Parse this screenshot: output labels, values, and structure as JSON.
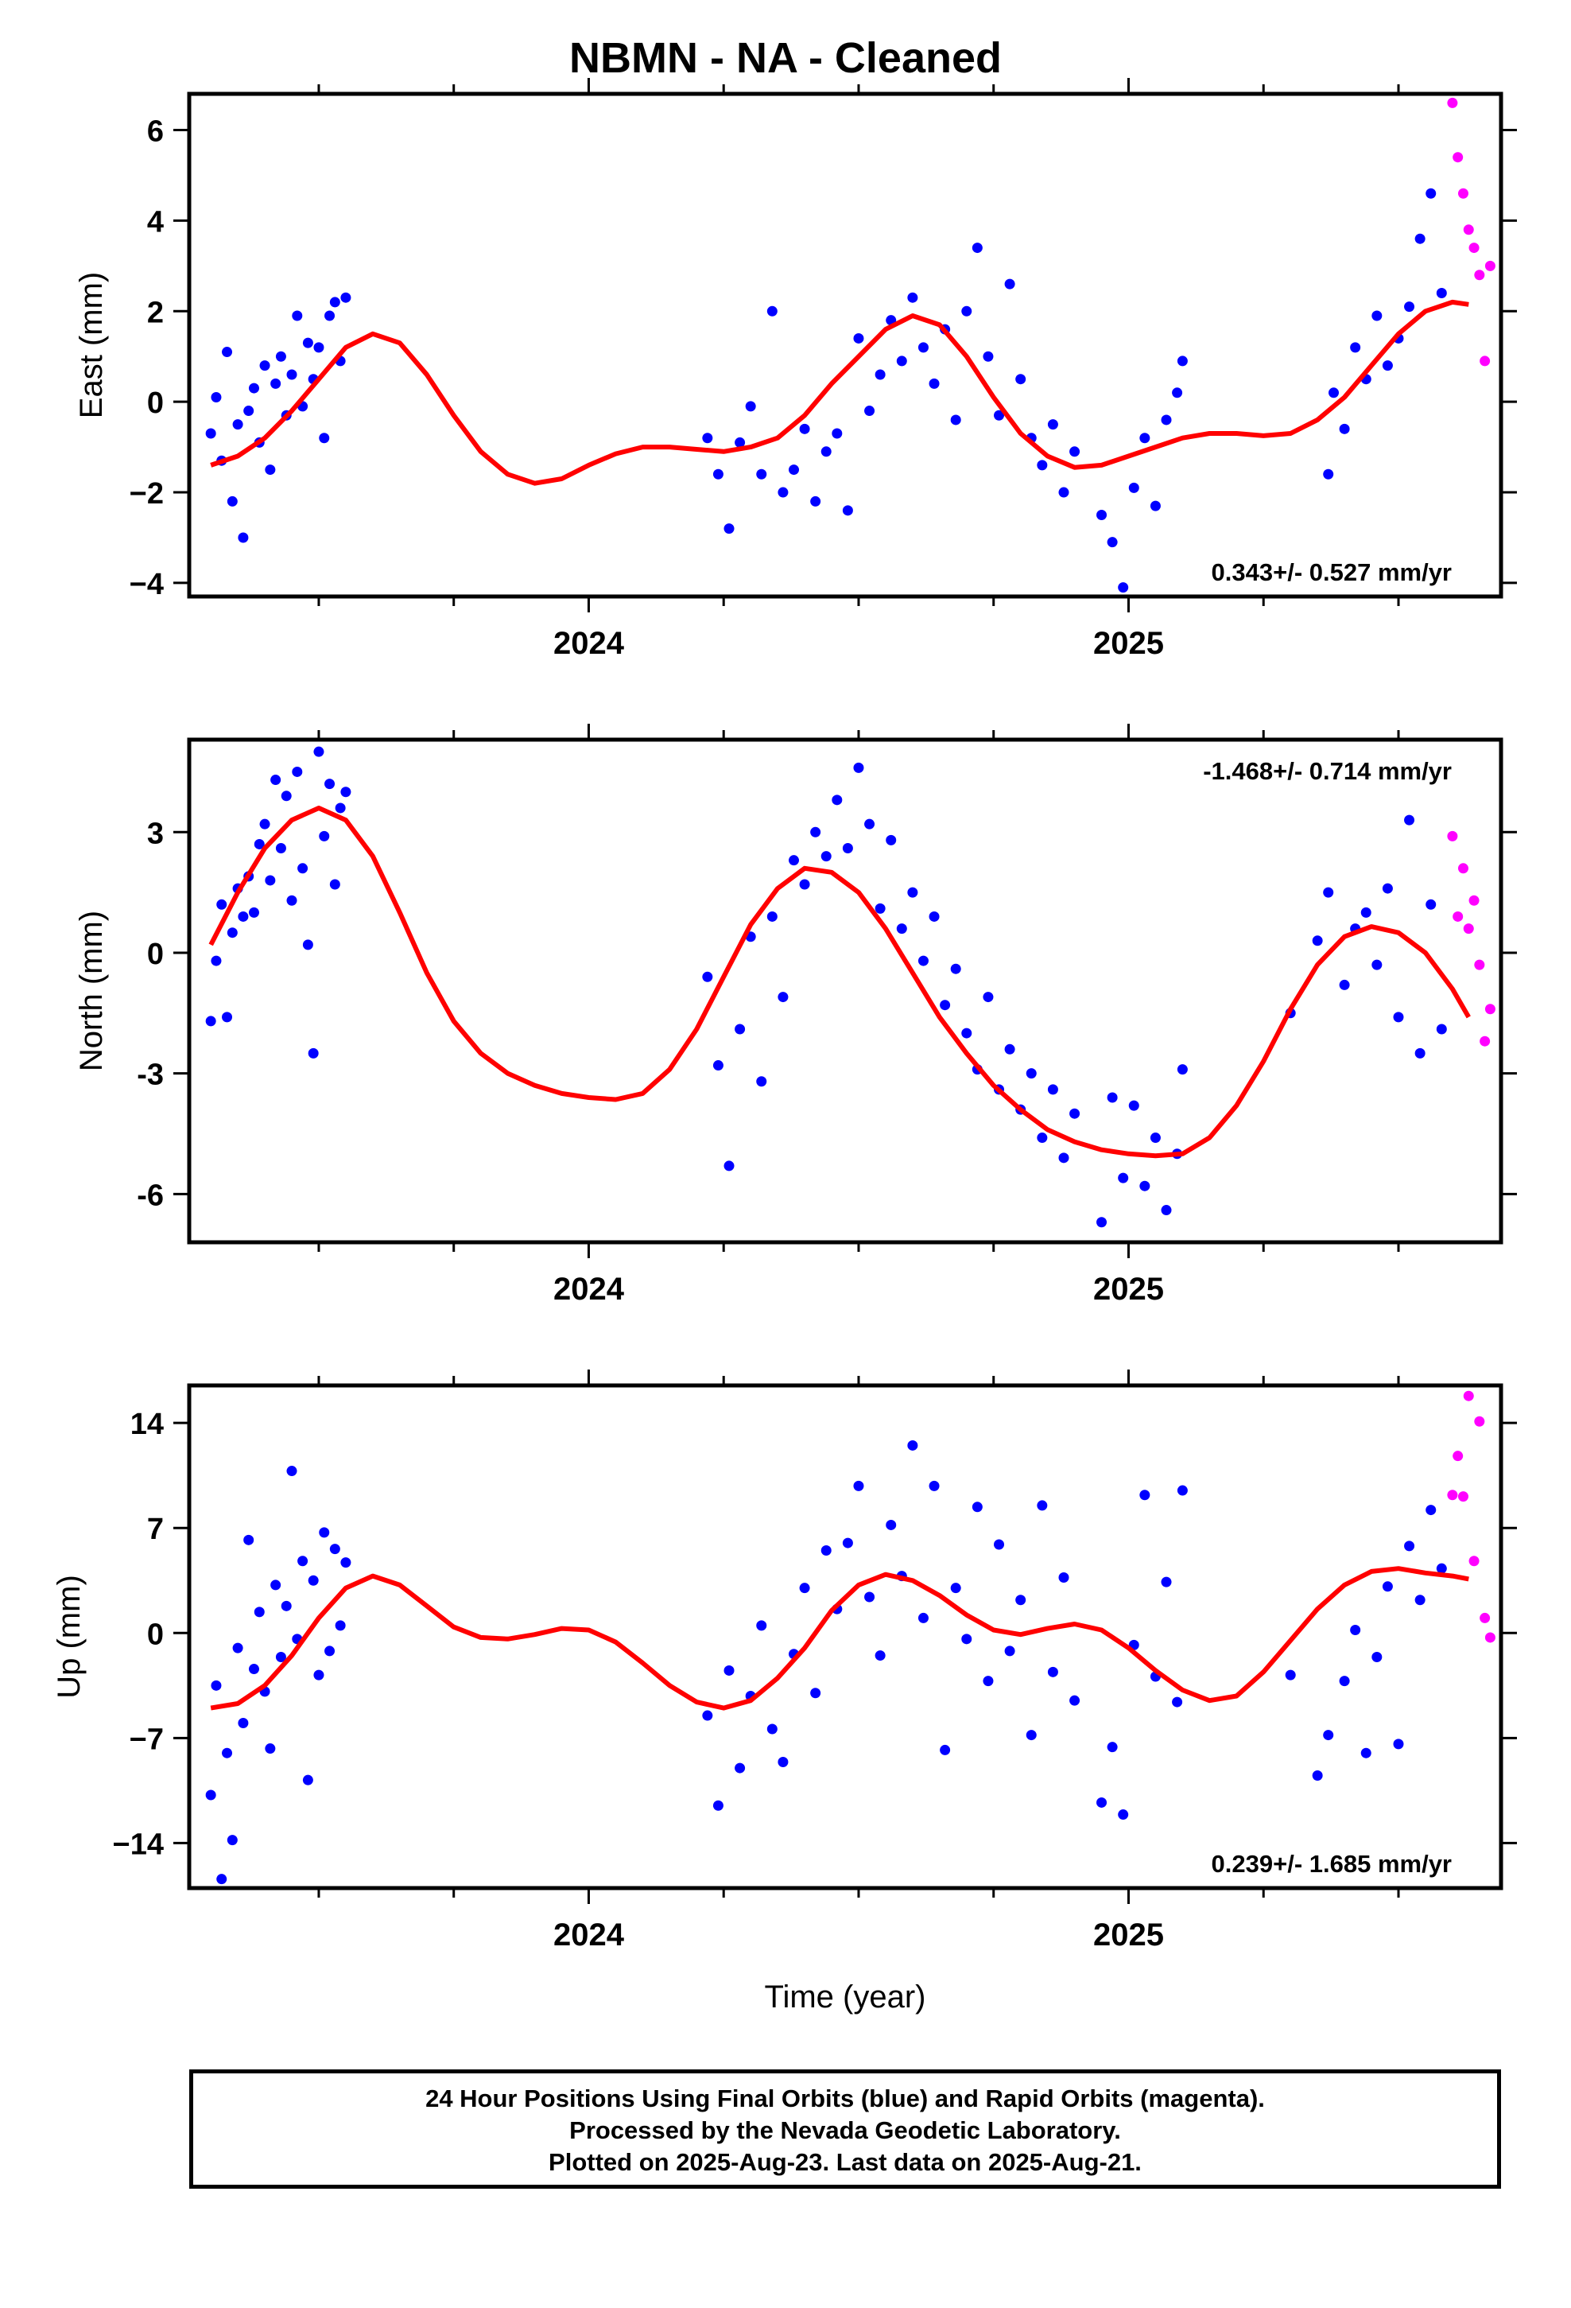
{
  "title": "NBMN  - NA - Cleaned",
  "colors": {
    "final": "#0000ff",
    "rapid": "#ff00ff",
    "fit": "#ff0000",
    "axis": "#000000"
  },
  "chart_data": [
    {
      "type": "scatter",
      "ylabel": "East (mm)",
      "xlabel": "",
      "x_ticks": [
        "2024",
        "2025"
      ],
      "xlim": [
        2023.26,
        2025.69
      ],
      "ylim": [
        -4.3,
        6.8
      ],
      "y_ticks": [
        6,
        4,
        2,
        0,
        -2,
        -4
      ],
      "y_tick_labels": [
        "6",
        "4",
        "2",
        "0",
        "−2",
        "−4"
      ],
      "rate_label": "0.343+/- 0.527 mm/yr",
      "rate_position": "bottom-right",
      "trend": {
        "name": "",
        "x": [
          2023.3,
          2023.35,
          2023.4,
          2023.45,
          2023.5,
          2023.55,
          2023.6,
          2023.65,
          2023.7,
          2023.75,
          2023.8,
          2023.85,
          2023.9,
          2023.95,
          2024.0,
          2024.05,
          2024.1,
          2024.15,
          2024.2,
          2024.25,
          2024.3,
          2024.35,
          2024.4,
          2024.45,
          2024.5,
          2024.55,
          2024.6,
          2024.65,
          2024.7,
          2024.75,
          2024.8,
          2024.85,
          2024.9,
          2024.95,
          2025.0,
          2025.05,
          2025.1,
          2025.15,
          2025.2,
          2025.25,
          2025.3,
          2025.35,
          2025.4,
          2025.45,
          2025.5,
          2025.55,
          2025.6,
          2025.63
        ],
        "y": [
          -1.4,
          -1.2,
          -0.8,
          -0.2,
          0.5,
          1.2,
          1.5,
          1.3,
          0.6,
          -0.3,
          -1.1,
          -1.6,
          -1.8,
          -1.7,
          -1.4,
          -1.15,
          -1.0,
          -1.0,
          -1.05,
          -1.1,
          -1.0,
          -0.8,
          -0.3,
          0.4,
          1.0,
          1.6,
          1.9,
          1.7,
          1.0,
          0.1,
          -0.7,
          -1.2,
          -1.45,
          -1.4,
          -1.2,
          -1.0,
          -0.8,
          -0.7,
          -0.7,
          -0.75,
          -0.7,
          -0.4,
          0.1,
          0.8,
          1.5,
          2.0,
          2.2,
          2.15
        ]
      },
      "series": [
        {
          "name": "",
          "color": "#0000ff",
          "x": [
            2023.3,
            2023.31,
            2023.32,
            2023.33,
            2023.34,
            2023.35,
            2023.36,
            2023.37,
            2023.38,
            2023.39,
            2023.4,
            2023.41,
            2023.42,
            2023.43,
            2023.44,
            2023.45,
            2023.46,
            2023.47,
            2023.48,
            2023.49,
            2023.5,
            2023.51,
            2023.52,
            2023.53,
            2023.54,
            2023.55,
            2024.22,
            2024.24,
            2024.26,
            2024.28,
            2024.3,
            2024.32,
            2024.34,
            2024.36,
            2024.38,
            2024.4,
            2024.42,
            2024.44,
            2024.46,
            2024.48,
            2024.5,
            2024.52,
            2024.54,
            2024.56,
            2024.58,
            2024.6,
            2024.62,
            2024.64,
            2024.66,
            2024.68,
            2024.7,
            2024.72,
            2024.74,
            2024.76,
            2024.78,
            2024.8,
            2024.82,
            2024.84,
            2024.86,
            2024.88,
            2024.9,
            2024.95,
            2024.97,
            2024.99,
            2025.01,
            2025.03,
            2025.05,
            2025.07,
            2025.09,
            2025.1,
            2025.37,
            2025.38,
            2025.4,
            2025.42,
            2025.44,
            2025.46,
            2025.48,
            2025.5,
            2025.52,
            2025.54,
            2025.56,
            2025.58
          ],
          "y": [
            -0.7,
            0.1,
            -1.3,
            1.1,
            -2.2,
            -0.5,
            -3.0,
            -0.2,
            0.3,
            -0.9,
            0.8,
            -1.5,
            0.4,
            1.0,
            -0.3,
            0.6,
            1.9,
            -0.1,
            1.3,
            0.5,
            1.2,
            -0.8,
            1.9,
            2.2,
            0.9,
            2.3,
            -0.8,
            -1.6,
            -2.8,
            -0.9,
            -0.1,
            -1.6,
            2.0,
            -2.0,
            -1.5,
            -0.6,
            -2.2,
            -1.1,
            -0.7,
            -2.4,
            1.4,
            -0.2,
            0.6,
            1.8,
            0.9,
            2.3,
            1.2,
            0.4,
            1.6,
            -0.4,
            2.0,
            3.4,
            1.0,
            -0.3,
            2.6,
            0.5,
            -0.8,
            -1.4,
            -0.5,
            -2.0,
            -1.1,
            -2.5,
            -3.1,
            -4.1,
            -1.9,
            -0.8,
            -2.3,
            -0.4,
            0.2,
            0.9,
            -1.6,
            0.2,
            -0.6,
            1.2,
            0.5,
            1.9,
            0.8,
            1.4,
            2.1,
            3.6,
            4.6,
            2.4
          ]
        },
        {
          "name": "",
          "color": "#ff00ff",
          "x": [
            2025.6,
            2025.61,
            2025.62,
            2025.63,
            2025.64,
            2025.65,
            2025.66,
            2025.67
          ],
          "y": [
            6.6,
            5.4,
            4.6,
            3.8,
            3.4,
            2.8,
            0.9,
            3.0
          ]
        }
      ]
    },
    {
      "type": "scatter",
      "ylabel": "North (mm)",
      "xlabel": "",
      "x_ticks": [
        "2024",
        "2025"
      ],
      "xlim": [
        2023.26,
        2025.69
      ],
      "ylim": [
        -7.2,
        5.3
      ],
      "y_ticks": [
        3,
        0,
        -3,
        -6
      ],
      "y_tick_labels": [
        "3",
        "0",
        "-3",
        "-6"
      ],
      "rate_label": "-1.468+/- 0.714 mm/yr",
      "rate_position": "top-right",
      "trend": {
        "name": "",
        "x": [
          2023.3,
          2023.35,
          2023.4,
          2023.45,
          2023.5,
          2023.55,
          2023.6,
          2023.65,
          2023.7,
          2023.75,
          2023.8,
          2023.85,
          2023.9,
          2023.95,
          2024.0,
          2024.05,
          2024.1,
          2024.15,
          2024.2,
          2024.25,
          2024.3,
          2024.35,
          2024.4,
          2024.45,
          2024.5,
          2024.55,
          2024.6,
          2024.65,
          2024.7,
          2024.75,
          2024.8,
          2024.85,
          2024.9,
          2024.95,
          2025.0,
          2025.05,
          2025.1,
          2025.15,
          2025.2,
          2025.25,
          2025.3,
          2025.35,
          2025.4,
          2025.45,
          2025.5,
          2025.55,
          2025.6,
          2025.63
        ],
        "y": [
          0.2,
          1.5,
          2.6,
          3.3,
          3.6,
          3.3,
          2.4,
          1.0,
          -0.5,
          -1.7,
          -2.5,
          -3.0,
          -3.3,
          -3.5,
          -3.6,
          -3.65,
          -3.5,
          -2.9,
          -1.9,
          -0.6,
          0.7,
          1.6,
          2.1,
          2.0,
          1.5,
          0.6,
          -0.5,
          -1.6,
          -2.5,
          -3.3,
          -3.9,
          -4.4,
          -4.7,
          -4.9,
          -5.0,
          -5.05,
          -5.0,
          -4.6,
          -3.8,
          -2.7,
          -1.4,
          -0.3,
          0.4,
          0.65,
          0.5,
          0.0,
          -0.9,
          -1.6
        ]
      },
      "series": [
        {
          "name": "",
          "color": "#0000ff",
          "x": [
            2023.3,
            2023.31,
            2023.32,
            2023.33,
            2023.34,
            2023.35,
            2023.36,
            2023.37,
            2023.38,
            2023.39,
            2023.4,
            2023.41,
            2023.42,
            2023.43,
            2023.44,
            2023.45,
            2023.46,
            2023.47,
            2023.48,
            2023.49,
            2023.5,
            2023.51,
            2023.52,
            2023.53,
            2023.54,
            2023.55,
            2024.22,
            2024.24,
            2024.26,
            2024.28,
            2024.3,
            2024.32,
            2024.34,
            2024.36,
            2024.38,
            2024.4,
            2024.42,
            2024.44,
            2024.46,
            2024.48,
            2024.5,
            2024.52,
            2024.54,
            2024.56,
            2024.58,
            2024.6,
            2024.62,
            2024.64,
            2024.66,
            2024.68,
            2024.7,
            2024.72,
            2024.74,
            2024.76,
            2024.78,
            2024.8,
            2024.82,
            2024.84,
            2024.86,
            2024.88,
            2024.9,
            2024.95,
            2024.97,
            2024.99,
            2025.01,
            2025.03,
            2025.05,
            2025.07,
            2025.09,
            2025.1,
            2025.3,
            2025.35,
            2025.37,
            2025.4,
            2025.42,
            2025.44,
            2025.46,
            2025.48,
            2025.5,
            2025.52,
            2025.54,
            2025.56,
            2025.58
          ],
          "y": [
            -1.7,
            -0.2,
            1.2,
            -1.6,
            0.5,
            1.6,
            0.9,
            1.9,
            1.0,
            2.7,
            3.2,
            1.8,
            4.3,
            2.6,
            3.9,
            1.3,
            4.5,
            2.1,
            0.2,
            -2.5,
            5.0,
            2.9,
            4.2,
            1.7,
            3.6,
            4.0,
            -0.6,
            -2.8,
            -5.3,
            -1.9,
            0.4,
            -3.2,
            0.9,
            -1.1,
            2.3,
            1.7,
            3.0,
            2.4,
            3.8,
            2.6,
            4.6,
            3.2,
            1.1,
            2.8,
            0.6,
            1.5,
            -0.2,
            0.9,
            -1.3,
            -0.4,
            -2.0,
            -2.9,
            -1.1,
            -3.4,
            -2.4,
            -3.9,
            -3.0,
            -4.6,
            -3.4,
            -5.1,
            -4.0,
            -6.7,
            -3.6,
            -5.6,
            -3.8,
            -5.8,
            -4.6,
            -6.4,
            -5.0,
            -2.9,
            -1.5,
            0.3,
            1.5,
            -0.8,
            0.6,
            1.0,
            -0.3,
            1.6,
            -1.6,
            3.3,
            -2.5,
            1.2,
            -1.9
          ]
        },
        {
          "name": "",
          "color": "#ff00ff",
          "x": [
            2025.6,
            2025.61,
            2025.62,
            2025.63,
            2025.64,
            2025.65,
            2025.66,
            2025.67
          ],
          "y": [
            2.9,
            0.9,
            2.1,
            0.6,
            1.3,
            -0.3,
            -2.2,
            -1.4
          ]
        }
      ]
    },
    {
      "type": "scatter",
      "ylabel": "Up (mm)",
      "xlabel": "Time (year)",
      "x_ticks": [
        "2024",
        "2025"
      ],
      "xlim": [
        2023.26,
        2025.69
      ],
      "ylim": [
        -17,
        16.5
      ],
      "y_ticks": [
        14,
        7,
        0,
        -7,
        -14
      ],
      "y_tick_labels": [
        "14",
        "7",
        "0",
        "−7",
        "−14"
      ],
      "rate_label": "0.239+/- 1.685 mm/yr",
      "rate_position": "bottom-right",
      "trend": {
        "name": "",
        "x": [
          2023.3,
          2023.35,
          2023.4,
          2023.45,
          2023.5,
          2023.55,
          2023.6,
          2023.65,
          2023.7,
          2023.75,
          2023.8,
          2023.85,
          2023.9,
          2023.95,
          2024.0,
          2024.05,
          2024.1,
          2024.15,
          2024.2,
          2024.25,
          2024.3,
          2024.35,
          2024.4,
          2024.45,
          2024.5,
          2024.55,
          2024.6,
          2024.65,
          2024.7,
          2024.75,
          2024.8,
          2024.85,
          2024.9,
          2024.95,
          2025.0,
          2025.05,
          2025.1,
          2025.15,
          2025.2,
          2025.25,
          2025.3,
          2025.35,
          2025.4,
          2025.45,
          2025.5,
          2025.55,
          2025.6,
          2025.63
        ],
        "y": [
          -5.0,
          -4.7,
          -3.5,
          -1.5,
          1.0,
          3.0,
          3.8,
          3.2,
          1.8,
          0.4,
          -0.3,
          -0.4,
          -0.1,
          0.3,
          0.2,
          -0.6,
          -2.0,
          -3.5,
          -4.6,
          -5.0,
          -4.5,
          -3.0,
          -1.0,
          1.5,
          3.2,
          3.9,
          3.5,
          2.5,
          1.2,
          0.2,
          -0.1,
          0.3,
          0.6,
          0.2,
          -1.0,
          -2.5,
          -3.8,
          -4.5,
          -4.2,
          -2.6,
          -0.5,
          1.6,
          3.2,
          4.1,
          4.3,
          4.0,
          3.8,
          3.6
        ]
      },
      "series": [
        {
          "name": "",
          "color": "#0000ff",
          "x": [
            2023.3,
            2023.31,
            2023.32,
            2023.33,
            2023.34,
            2023.35,
            2023.36,
            2023.37,
            2023.38,
            2023.39,
            2023.4,
            2023.41,
            2023.42,
            2023.43,
            2023.44,
            2023.45,
            2023.46,
            2023.47,
            2023.48,
            2023.49,
            2023.5,
            2023.51,
            2023.52,
            2023.53,
            2023.54,
            2023.55,
            2024.22,
            2024.24,
            2024.26,
            2024.28,
            2024.3,
            2024.32,
            2024.34,
            2024.36,
            2024.38,
            2024.4,
            2024.42,
            2024.44,
            2024.46,
            2024.48,
            2024.5,
            2024.52,
            2024.54,
            2024.56,
            2024.58,
            2024.6,
            2024.62,
            2024.64,
            2024.66,
            2024.68,
            2024.7,
            2024.72,
            2024.74,
            2024.76,
            2024.78,
            2024.8,
            2024.82,
            2024.84,
            2024.86,
            2024.88,
            2024.9,
            2024.95,
            2024.97,
            2024.99,
            2025.01,
            2025.03,
            2025.05,
            2025.07,
            2025.09,
            2025.1,
            2025.3,
            2025.35,
            2025.37,
            2025.4,
            2025.42,
            2025.44,
            2025.46,
            2025.48,
            2025.5,
            2025.52,
            2025.54,
            2025.56,
            2025.58
          ],
          "y": [
            -10.8,
            -3.5,
            -16.4,
            -8.0,
            -13.8,
            -1.0,
            -6.0,
            6.2,
            -2.4,
            1.4,
            -3.9,
            -7.7,
            3.2,
            -1.6,
            1.8,
            10.8,
            -0.4,
            4.8,
            -9.8,
            3.5,
            -2.8,
            6.7,
            -1.2,
            5.6,
            0.5,
            4.7,
            -5.5,
            -11.5,
            -2.5,
            -9.0,
            -4.2,
            0.5,
            -6.4,
            -8.6,
            -1.4,
            3.0,
            -4.0,
            5.5,
            1.6,
            6.0,
            9.8,
            2.4,
            -1.5,
            7.2,
            3.8,
            12.5,
            1.0,
            9.8,
            -7.8,
            3.0,
            -0.4,
            8.4,
            -3.2,
            5.9,
            -1.2,
            2.2,
            -6.8,
            8.5,
            -2.6,
            3.7,
            -4.5,
            -11.3,
            -7.6,
            -12.1,
            -0.8,
            9.2,
            -2.9,
            3.4,
            -4.6,
            9.5,
            -2.8,
            -9.5,
            -6.8,
            -3.2,
            0.2,
            -8.0,
            -1.6,
            3.1,
            -7.4,
            5.8,
            2.2,
            8.2,
            4.3
          ]
        },
        {
          "name": "",
          "color": "#ff00ff",
          "x": [
            2025.6,
            2025.61,
            2025.62,
            2025.63,
            2025.64,
            2025.65,
            2025.66,
            2025.67
          ],
          "y": [
            9.2,
            11.8,
            9.1,
            15.8,
            4.8,
            14.1,
            1.0,
            -0.3
          ]
        }
      ]
    }
  ],
  "footer": {
    "line1": "24 Hour Positions Using Final Orbits (blue) and Rapid Orbits (magenta).",
    "line2": "Processed by the Nevada Geodetic Laboratory.",
    "line3": "Plotted on 2025-Aug-23. Last data on 2025-Aug-21."
  }
}
